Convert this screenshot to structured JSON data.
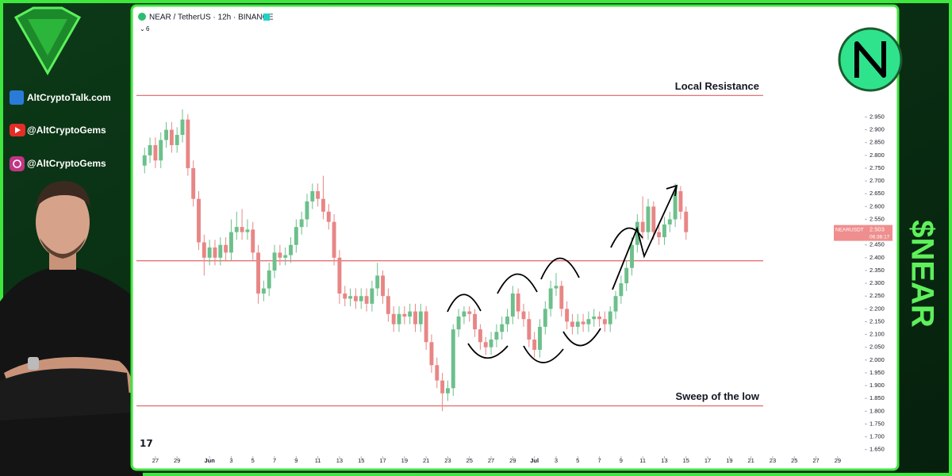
{
  "sidebar": {
    "website": "AltCryptoTalk.com",
    "youtube": "@AltCryptoGems",
    "instagram": "@AltCryptoGems",
    "ticker": "$NEAR"
  },
  "chart_data": {
    "type": "candlestick",
    "title": "NEAR / TetherUS · 12h · BINANCE",
    "indicators": "6",
    "up_color": "#6cc08b",
    "down_color": "#e88686",
    "grid": false,
    "open": [
      2.76,
      2.8,
      2.84,
      2.78,
      2.86,
      2.9,
      2.84,
      2.88,
      2.94,
      2.75,
      2.63,
      2.46,
      2.4,
      2.44,
      2.4,
      2.45,
      2.42,
      2.5,
      2.52,
      2.5,
      2.51,
      2.42,
      2.26,
      2.28,
      2.35,
      2.42,
      2.4,
      2.41,
      2.45,
      2.52,
      2.55,
      2.62,
      2.66,
      2.63,
      2.58,
      2.54,
      2.4,
      2.26,
      2.24,
      2.25,
      2.23,
      2.25,
      2.22,
      2.28,
      2.33,
      2.25,
      2.18,
      2.14,
      2.18,
      2.17,
      2.19,
      2.14,
      2.19,
      2.07,
      1.98,
      1.92,
      1.87,
      1.89,
      2.12,
      2.17,
      2.19,
      2.18,
      2.12,
      2.07,
      2.05,
      2.08,
      2.11,
      2.14,
      2.17,
      2.26,
      2.19,
      2.16,
      2.08,
      2.04,
      2.13,
      2.2,
      2.28,
      2.29,
      2.2,
      2.15,
      2.13,
      2.15,
      2.14,
      2.16,
      2.17,
      2.16,
      2.14,
      2.19,
      2.25,
      2.3,
      2.36,
      2.45,
      2.54,
      2.5,
      2.6,
      2.5,
      2.48,
      2.53,
      2.55,
      2.66,
      2.58
    ],
    "high": [
      2.83,
      2.87,
      2.87,
      2.89,
      2.93,
      2.93,
      2.91,
      2.98,
      2.96,
      2.78,
      2.66,
      2.49,
      2.47,
      2.47,
      2.48,
      2.48,
      2.55,
      2.58,
      2.59,
      2.55,
      2.54,
      2.45,
      2.31,
      2.38,
      2.45,
      2.45,
      2.44,
      2.48,
      2.55,
      2.58,
      2.65,
      2.69,
      2.69,
      2.72,
      2.61,
      2.57,
      2.43,
      2.29,
      2.28,
      2.28,
      2.28,
      2.28,
      2.31,
      2.38,
      2.35,
      2.28,
      2.21,
      2.21,
      2.21,
      2.22,
      2.22,
      2.22,
      2.21,
      2.1,
      2.01,
      1.95,
      1.92,
      2.14,
      2.2,
      2.21,
      2.21,
      2.2,
      2.14,
      2.09,
      2.11,
      2.14,
      2.17,
      2.2,
      2.29,
      2.28,
      2.22,
      2.19,
      2.11,
      2.16,
      2.23,
      2.31,
      2.34,
      2.31,
      2.23,
      2.18,
      2.18,
      2.18,
      2.19,
      2.2,
      2.19,
      2.19,
      2.21,
      2.27,
      2.33,
      2.39,
      2.48,
      2.57,
      2.64,
      2.63,
      2.62,
      2.53,
      2.56,
      2.58,
      2.69,
      2.68,
      2.6
    ],
    "low": [
      2.73,
      2.77,
      2.75,
      2.75,
      2.83,
      2.81,
      2.81,
      2.85,
      2.72,
      2.6,
      2.43,
      2.33,
      2.37,
      2.37,
      2.37,
      2.39,
      2.39,
      2.47,
      2.47,
      2.47,
      2.39,
      2.22,
      2.23,
      2.25,
      2.32,
      2.37,
      2.37,
      2.38,
      2.42,
      2.49,
      2.52,
      2.59,
      2.6,
      2.55,
      2.51,
      2.37,
      2.22,
      2.21,
      2.21,
      2.2,
      2.2,
      2.19,
      2.19,
      2.25,
      2.22,
      2.15,
      2.11,
      2.11,
      2.14,
      2.14,
      2.11,
      2.11,
      2.04,
      1.95,
      1.89,
      1.8,
      1.84,
      1.86,
      2.09,
      2.14,
      2.15,
      2.09,
      2.04,
      2.02,
      2.02,
      2.05,
      2.08,
      2.11,
      2.14,
      2.16,
      2.13,
      2.05,
      2.01,
      2.01,
      2.1,
      2.17,
      2.25,
      2.17,
      2.12,
      2.1,
      2.1,
      2.11,
      2.11,
      2.13,
      2.13,
      2.11,
      2.11,
      2.16,
      2.22,
      2.27,
      2.33,
      2.42,
      2.47,
      2.47,
      2.47,
      2.45,
      2.45,
      2.5,
      2.52,
      2.55,
      2.47
    ],
    "close": [
      2.8,
      2.84,
      2.78,
      2.86,
      2.9,
      2.84,
      2.88,
      2.94,
      2.75,
      2.63,
      2.46,
      2.4,
      2.44,
      2.4,
      2.45,
      2.42,
      2.5,
      2.52,
      2.5,
      2.51,
      2.42,
      2.26,
      2.28,
      2.35,
      2.42,
      2.4,
      2.41,
      2.45,
      2.52,
      2.55,
      2.62,
      2.66,
      2.63,
      2.58,
      2.54,
      2.4,
      2.26,
      2.24,
      2.25,
      2.23,
      2.25,
      2.22,
      2.28,
      2.33,
      2.25,
      2.18,
      2.14,
      2.18,
      2.17,
      2.19,
      2.14,
      2.19,
      2.07,
      1.98,
      1.92,
      1.87,
      1.89,
      2.12,
      2.17,
      2.19,
      2.18,
      2.12,
      2.07,
      2.05,
      2.08,
      2.11,
      2.14,
      2.17,
      2.26,
      2.19,
      2.16,
      2.08,
      2.04,
      2.13,
      2.2,
      2.28,
      2.29,
      2.2,
      2.15,
      2.13,
      2.15,
      2.14,
      2.16,
      2.17,
      2.16,
      2.14,
      2.19,
      2.25,
      2.3,
      2.36,
      2.45,
      2.54,
      2.5,
      2.6,
      2.5,
      2.48,
      2.53,
      2.55,
      2.66,
      2.58,
      2.5
    ],
    "xlim": [
      -1.5,
      133
    ],
    "xticks": [
      {
        "value": 2,
        "label": "27"
      },
      {
        "value": 6,
        "label": "29"
      },
      {
        "value": 12,
        "label": "Jun"
      },
      {
        "value": 16,
        "label": "3"
      },
      {
        "value": 20,
        "label": "5"
      },
      {
        "value": 24,
        "label": "7"
      },
      {
        "value": 28,
        "label": "9"
      },
      {
        "value": 32,
        "label": "11"
      },
      {
        "value": 36,
        "label": "13"
      },
      {
        "value": 40,
        "label": "15"
      },
      {
        "value": 44,
        "label": "17"
      },
      {
        "value": 48,
        "label": "19"
      },
      {
        "value": 52,
        "label": "21"
      },
      {
        "value": 56,
        "label": "23"
      },
      {
        "value": 60,
        "label": "25"
      },
      {
        "value": 64,
        "label": "27"
      },
      {
        "value": 68,
        "label": "29"
      },
      {
        "value": 72,
        "label": "Jul"
      },
      {
        "value": 76,
        "label": "3"
      },
      {
        "value": 80,
        "label": "5"
      },
      {
        "value": 84,
        "label": "7"
      },
      {
        "value": 88,
        "label": "9"
      },
      {
        "value": 92,
        "label": "11"
      },
      {
        "value": 96,
        "label": "13"
      },
      {
        "value": 100,
        "label": "15"
      },
      {
        "value": 104,
        "label": "17"
      },
      {
        "value": 108,
        "label": "19"
      },
      {
        "value": 112,
        "label": "21"
      },
      {
        "value": 116,
        "label": "23"
      },
      {
        "value": 120,
        "label": "25"
      },
      {
        "value": 124,
        "label": "27"
      },
      {
        "value": 128,
        "label": "29"
      }
    ],
    "ylim": [
      1.615,
      3.37
    ],
    "yticks": [
      {
        "value": 1.65,
        "label": "1.650"
      },
      {
        "value": 1.7,
        "label": "1.700"
      },
      {
        "value": 1.75,
        "label": "1.750"
      },
      {
        "value": 1.8,
        "label": "1.800"
      },
      {
        "value": 1.85,
        "label": "1.850"
      },
      {
        "value": 1.9,
        "label": "1.900"
      },
      {
        "value": 1.95,
        "label": "1.950"
      },
      {
        "value": 2.0,
        "label": "2.000"
      },
      {
        "value": 2.05,
        "label": "2.050"
      },
      {
        "value": 2.1,
        "label": "2.100"
      },
      {
        "value": 2.15,
        "label": "2.150"
      },
      {
        "value": 2.2,
        "label": "2.200"
      },
      {
        "value": 2.25,
        "label": "2.250"
      },
      {
        "value": 2.3,
        "label": "2.300"
      },
      {
        "value": 2.35,
        "label": "2.350"
      },
      {
        "value": 2.4,
        "label": "2.400"
      },
      {
        "value": 2.45,
        "label": "2.450"
      },
      {
        "value": 2.5,
        "label": "2.500"
      },
      {
        "value": 2.55,
        "label": "2.550"
      },
      {
        "value": 2.6,
        "label": "2.600"
      },
      {
        "value": 2.65,
        "label": "2.650"
      },
      {
        "value": 2.7,
        "label": "2.700"
      },
      {
        "value": 2.75,
        "label": "2.750"
      },
      {
        "value": 2.8,
        "label": "2.800"
      },
      {
        "value": 2.85,
        "label": "2.850"
      },
      {
        "value": 2.9,
        "label": "2.900"
      },
      {
        "value": 2.95,
        "label": "2.950"
      }
    ],
    "levels": [
      {
        "label": "Local Resistance",
        "value": 3.034
      },
      {
        "value": 2.388
      },
      {
        "label": "Sweep of the low",
        "value": 1.821
      }
    ],
    "level_color": "#e57373",
    "price_tag": {
      "symbol": "NEARUSDT",
      "value": 2.503,
      "countdown": "06:36:17"
    }
  }
}
